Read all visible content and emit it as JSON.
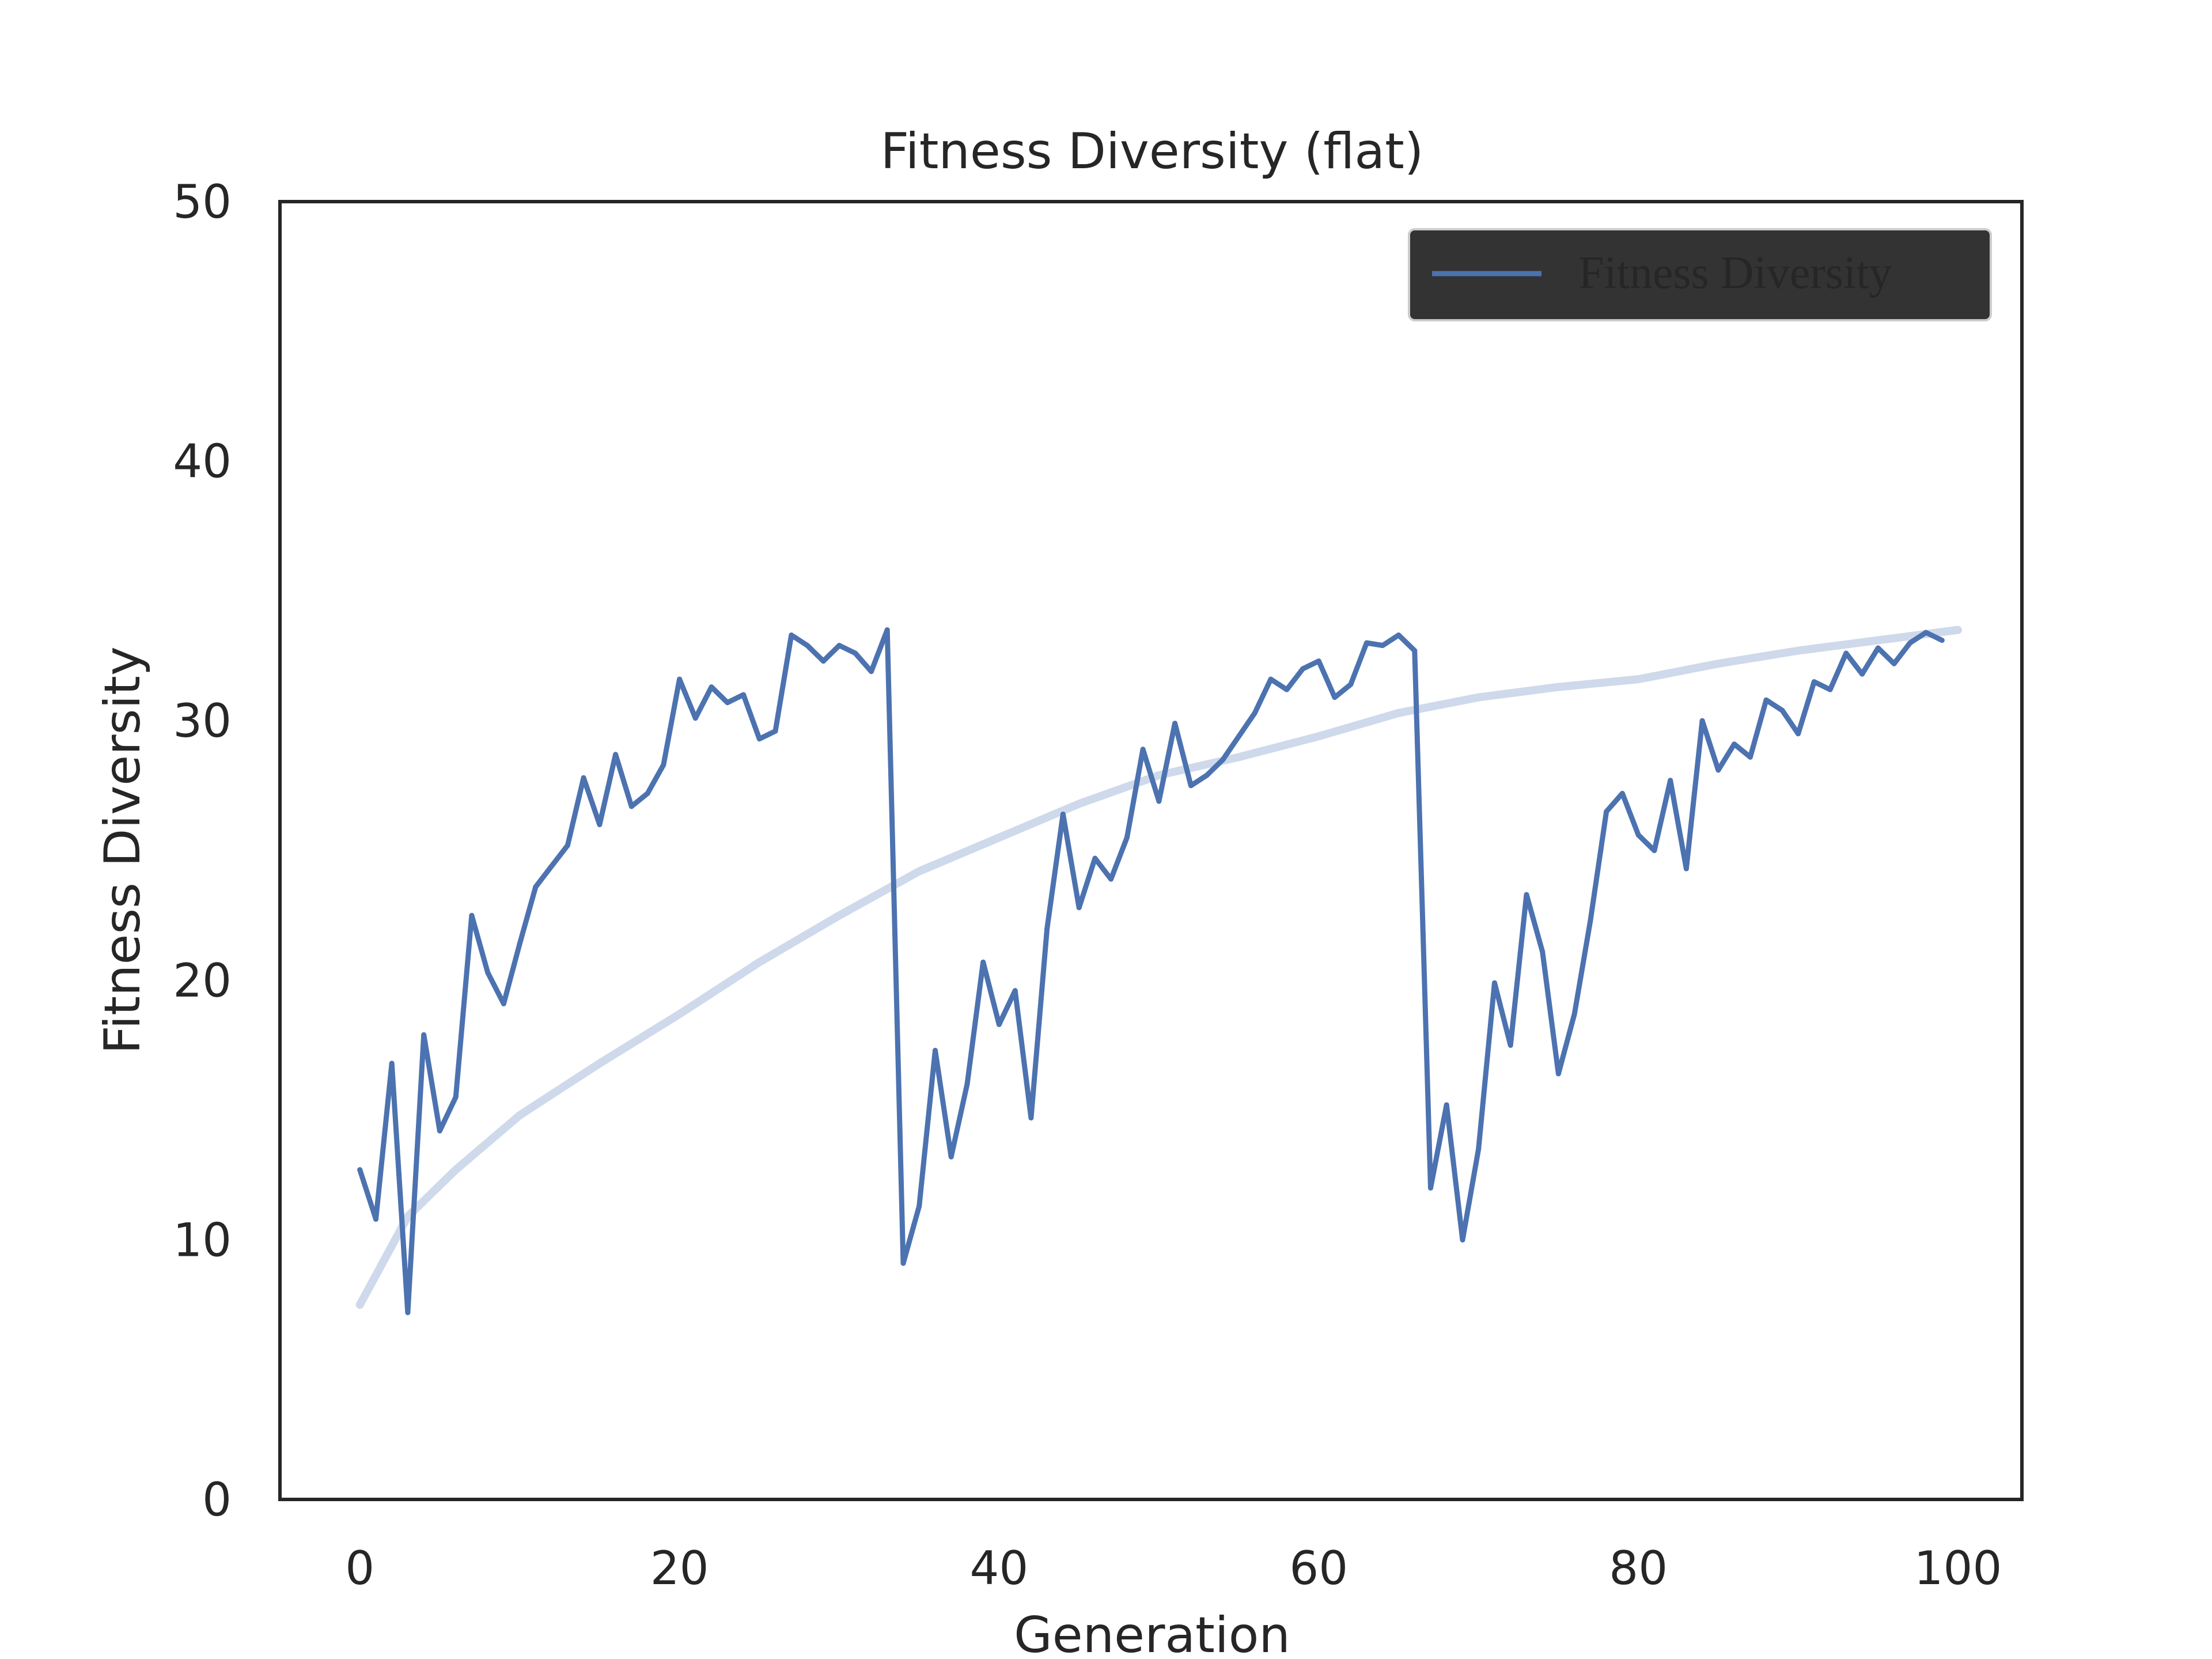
{
  "chart_data": {
    "type": "line",
    "title": "Fitness Diversity (flat)",
    "xlabel": "Generation",
    "ylabel": "Fitness Diversity",
    "xlim": [
      -5,
      104
    ],
    "ylim": [
      0,
      50
    ],
    "xticks": [
      0,
      20,
      40,
      60,
      80,
      100
    ],
    "yticks": [
      0,
      10,
      20,
      30,
      40,
      50
    ],
    "grid": false,
    "legend": {
      "placement": "top-right",
      "facecolor": "#333333"
    },
    "series": [
      {
        "name": "Fitness Diversity",
        "color": "#4c72b0",
        "x": [
          0,
          1,
          2,
          3,
          4,
          5,
          6,
          7,
          8,
          9,
          10,
          11,
          12,
          13,
          14,
          15,
          16,
          17,
          18,
          19,
          20,
          21,
          22,
          23,
          24,
          25,
          26,
          27,
          28,
          29,
          30,
          31,
          32,
          33,
          34,
          35,
          36,
          37,
          38,
          39,
          40,
          41,
          42,
          43,
          44,
          45,
          46,
          47,
          48,
          49,
          50,
          51,
          52,
          53,
          54,
          55,
          56,
          57,
          58,
          59,
          60,
          61,
          62,
          63,
          64,
          65,
          66,
          67,
          68,
          69,
          70,
          71,
          72,
          73,
          74,
          75,
          76,
          77,
          78,
          79,
          80,
          81,
          82,
          83,
          84,
          85,
          86,
          87,
          88,
          89,
          90,
          91,
          92,
          93,
          94,
          95,
          96,
          97,
          98,
          99
        ],
        "values": [
          12.7,
          10.8,
          16.8,
          7.2,
          17.9,
          14.2,
          15.5,
          22.5,
          20.3,
          19.1,
          21.4,
          23.6,
          24.4,
          25.2,
          27.8,
          26.0,
          28.7,
          26.7,
          27.2,
          28.3,
          31.6,
          30.1,
          31.3,
          30.7,
          31.0,
          29.3,
          29.6,
          33.3,
          32.9,
          32.3,
          32.9,
          32.6,
          31.9,
          33.5,
          9.1,
          11.3,
          17.3,
          13.2,
          16.0,
          20.7,
          18.3,
          19.6,
          14.7,
          22.0,
          26.4,
          22.8,
          24.7,
          23.9,
          25.5,
          28.9,
          26.9,
          29.9,
          27.5,
          27.9,
          28.5,
          29.4,
          30.3,
          31.6,
          31.2,
          32.0,
          32.3,
          30.9,
          31.4,
          33.0,
          32.9,
          33.3,
          32.7,
          12.0,
          15.2,
          10.0,
          13.5,
          19.9,
          17.5,
          23.3,
          21.1,
          16.4,
          18.7,
          22.3,
          26.5,
          27.2,
          25.6,
          25.0,
          27.7,
          24.3,
          30.0,
          28.1,
          29.1,
          28.6,
          30.8,
          30.4,
          29.5,
          31.5,
          31.2,
          32.6,
          31.8,
          32.8,
          32.2,
          33.0,
          33.4,
          33.1
        ]
      }
    ],
    "trend": {
      "color": "#c5d2e8",
      "x": [
        0,
        3,
        6,
        10,
        15,
        20,
        25,
        30,
        35,
        40,
        45,
        50,
        55,
        60,
        65,
        70,
        75,
        80,
        85,
        90,
        95,
        100
      ],
      "values": [
        7.5,
        10.9,
        12.7,
        14.8,
        16.8,
        18.7,
        20.7,
        22.5,
        24.2,
        25.5,
        26.8,
        27.9,
        28.6,
        29.4,
        30.3,
        30.9,
        31.3,
        31.6,
        32.2,
        32.7,
        33.1,
        33.5
      ]
    }
  }
}
